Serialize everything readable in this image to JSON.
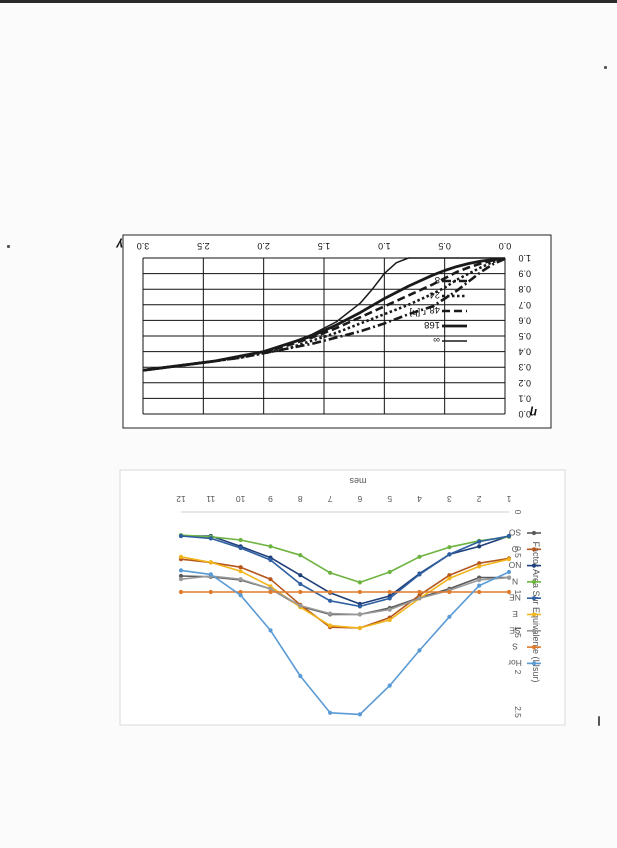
{
  "page": {
    "background": "#fbfbfb",
    "note": ""
  },
  "chart_data": [
    {
      "type": "line",
      "orientation": "rotated-180",
      "title": "",
      "xlabel": "γ",
      "ylabel": "η",
      "xlim": [
        0.0,
        3.0
      ],
      "ylim": [
        0.0,
        1.0
      ],
      "x_ticks": [
        "0.0",
        "0.5",
        "1.0",
        "1.5",
        "2.0",
        "2.5",
        "3.0"
      ],
      "y_ticks": [
        "0.0",
        "0.1",
        "0.2",
        "0.3",
        "0.4",
        "0.5",
        "0.6",
        "0.7",
        "0.8",
        "0.9",
        "1.0"
      ],
      "grid": true,
      "legend_title": "r [h]",
      "legend_position": "top-right",
      "series": [
        {
          "name": "8",
          "style": "dash-dot",
          "x": [
            0.0,
            0.1,
            0.2,
            0.3,
            0.4,
            0.5,
            0.6,
            0.8,
            1.0,
            1.2,
            1.4,
            1.6,
            1.8,
            2.0,
            2.2,
            2.4,
            2.6,
            2.8,
            3.0
          ],
          "y": [
            0.995,
            0.96,
            0.91,
            0.85,
            0.79,
            0.74,
            0.69,
            0.64,
            0.58,
            0.53,
            0.49,
            0.45,
            0.42,
            0.39,
            0.36,
            0.34,
            0.32,
            0.3,
            0.28
          ]
        },
        {
          "name": "24",
          "style": "dotted",
          "x": [
            0.0,
            0.1,
            0.2,
            0.3,
            0.4,
            0.5,
            0.6,
            0.8,
            1.0,
            1.2,
            1.4,
            1.6,
            1.8,
            2.0,
            2.2,
            2.4,
            2.6,
            2.8,
            3.0
          ],
          "y": [
            0.995,
            0.975,
            0.94,
            0.9,
            0.86,
            0.81,
            0.77,
            0.7,
            0.64,
            0.58,
            0.52,
            0.47,
            0.42,
            0.39,
            0.36,
            0.34,
            0.32,
            0.3,
            0.28
          ]
        },
        {
          "name": "48",
          "style": "dashed",
          "x": [
            0.0,
            0.1,
            0.2,
            0.3,
            0.4,
            0.5,
            0.6,
            0.8,
            1.0,
            1.2,
            1.4,
            1.6,
            1.8,
            2.0,
            2.2,
            2.4,
            2.6,
            2.8,
            3.0
          ],
          "y": [
            0.995,
            0.985,
            0.965,
            0.94,
            0.91,
            0.87,
            0.83,
            0.76,
            0.69,
            0.62,
            0.55,
            0.49,
            0.44,
            0.4,
            0.37,
            0.34,
            0.32,
            0.3,
            0.28
          ]
        },
        {
          "name": "168",
          "style": "solid",
          "x": [
            0.0,
            0.1,
            0.2,
            0.3,
            0.4,
            0.5,
            0.6,
            0.8,
            1.0,
            1.2,
            1.4,
            1.6,
            1.8,
            2.0,
            2.2,
            2.4,
            2.6,
            2.8,
            3.0
          ],
          "y": [
            0.995,
            0.99,
            0.98,
            0.965,
            0.945,
            0.92,
            0.89,
            0.82,
            0.74,
            0.65,
            0.57,
            0.5,
            0.45,
            0.4,
            0.37,
            0.34,
            0.32,
            0.3,
            0.28
          ]
        },
        {
          "name": "∞",
          "style": "solid-thin",
          "x": [
            0.0,
            0.2,
            0.4,
            0.6,
            0.8,
            0.9,
            1.0,
            1.1,
            1.2,
            1.4,
            1.6,
            1.8,
            2.0,
            2.2,
            2.4,
            2.6,
            2.8,
            3.0
          ],
          "y": [
            1.0,
            1.0,
            1.0,
            1.0,
            1.0,
            0.97,
            0.9,
            0.8,
            0.71,
            0.59,
            0.51,
            0.45,
            0.4,
            0.37,
            0.34,
            0.32,
            0.3,
            0.28
          ]
        }
      ]
    },
    {
      "type": "line",
      "orientation": "rotated-90",
      "title": "",
      "xlabel": "mes",
      "ylabel": "Factor Area Sur Equivalente (I/Isur)",
      "categories": [
        1,
        2,
        3,
        4,
        5,
        6,
        7,
        8,
        9,
        10,
        11,
        12
      ],
      "x_ticks": [
        "1",
        "2",
        "3",
        "4",
        "5",
        "6",
        "7",
        "8",
        "9",
        "10",
        "11",
        "12"
      ],
      "y_ticks": [
        "0",
        "0.5",
        "1",
        "1.5",
        "2",
        "2.5"
      ],
      "ylim": [
        0,
        2.5
      ],
      "grid": false,
      "legend_position": "right",
      "series": [
        {
          "name": "SO",
          "color": "#5a5a5a",
          "values": [
            0.82,
            0.82,
            0.96,
            1.07,
            1.2,
            1.28,
            1.28,
            1.18,
            0.96,
            0.85,
            0.81,
            0.8
          ]
        },
        {
          "name": "O",
          "color": "#b5561c",
          "values": [
            0.58,
            0.64,
            0.79,
            1.04,
            1.32,
            1.45,
            1.44,
            1.16,
            0.84,
            0.69,
            0.63,
            0.59
          ]
        },
        {
          "name": "NO",
          "color": "#1f3f7a",
          "values": [
            0.3,
            0.43,
            0.53,
            0.77,
            1.05,
            1.15,
            1.01,
            0.79,
            0.57,
            0.43,
            0.3,
            0.3
          ]
        },
        {
          "name": "N",
          "color": "#6cb33f",
          "values": [
            0.31,
            0.36,
            0.44,
            0.56,
            0.75,
            0.88,
            0.76,
            0.54,
            0.43,
            0.35,
            0.31,
            0.29
          ]
        },
        {
          "name": "NE",
          "color": "#2e5fa0",
          "values": [
            0.3,
            0.37,
            0.53,
            0.78,
            1.08,
            1.18,
            1.11,
            0.9,
            0.6,
            0.45,
            0.33,
            0.3
          ]
        },
        {
          "name": "E",
          "color": "#f2b51b",
          "values": [
            0.59,
            0.68,
            0.83,
            1.08,
            1.35,
            1.45,
            1.42,
            1.19,
            0.93,
            0.74,
            0.63,
            0.56
          ]
        },
        {
          "name": "SE",
          "color": "#9a9a9a",
          "values": [
            0.82,
            0.85,
            0.98,
            1.08,
            1.22,
            1.28,
            1.27,
            1.17,
            0.96,
            0.84,
            0.8,
            0.84
          ]
        },
        {
          "name": "S",
          "color": "#e07b2b",
          "values": [
            1.0,
            1.0,
            1.0,
            1.0,
            1.0,
            1.0,
            1.0,
            1.0,
            1.0,
            1.0,
            1.0,
            1.0
          ]
        },
        {
          "name": "Hor",
          "color": "#5b9bd5",
          "values": [
            0.75,
            0.92,
            1.31,
            1.73,
            2.17,
            2.53,
            2.51,
            2.05,
            1.48,
            1.04,
            0.78,
            0.73
          ]
        }
      ]
    }
  ]
}
